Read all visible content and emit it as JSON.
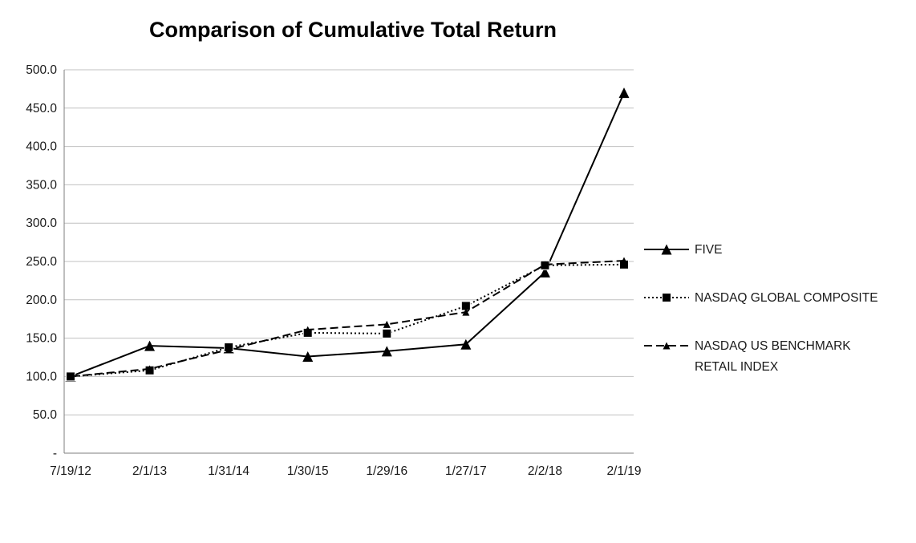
{
  "page": {
    "background_color": "#ffffff",
    "title": "Comparison of Cumulative Total Return"
  },
  "chart_data": {
    "type": "line",
    "title": "Comparison of Cumulative Total Return",
    "categories": [
      "7/19/12",
      "2/1/13",
      "1/31/14",
      "1/30/15",
      "1/29/16",
      "1/27/17",
      "2/2/18",
      "2/1/19"
    ],
    "series": [
      {
        "name": "FIVE",
        "legend_lines": [
          "FIVE"
        ],
        "values": [
          100.0,
          140.0,
          137.0,
          126.0,
          133.0,
          142.0,
          236.0,
          470.0
        ],
        "line_style": "solid",
        "marker": "triangle",
        "color": "#000000"
      },
      {
        "name": "NASDAQ GLOBAL COMPOSITE",
        "legend_lines": [
          "NASDAQ GLOBAL COMPOSITE"
        ],
        "values": [
          100.0,
          108.0,
          138.0,
          157.0,
          156.0,
          192.0,
          245.0,
          246.0
        ],
        "line_style": "dotted",
        "marker": "square",
        "color": "#000000"
      },
      {
        "name": "NASDAQ US BENCHMARK RETAIL INDEX",
        "legend_lines": [
          "NASDAQ US BENCHMARK",
          "RETAIL INDEX"
        ],
        "values": [
          100.0,
          110.0,
          135.0,
          161.0,
          168.0,
          184.0,
          246.0,
          251.0
        ],
        "line_style": "dashed",
        "marker": "triangle-small",
        "color": "#000000"
      }
    ],
    "ylim": [
      0,
      500
    ],
    "ytick_step": 50,
    "ytick_labels": [
      "-",
      "50.0",
      "100.0",
      "150.0",
      "200.0",
      "250.0",
      "300.0",
      "350.0",
      "400.0",
      "450.0",
      "500.0"
    ],
    "xlabel": "",
    "ylabel": "",
    "grid": "horizontal",
    "legend_position": "right",
    "axis_color": "#7f7f7f",
    "grid_color": "#c0c0c0",
    "text_color": "#1a1a1a"
  }
}
